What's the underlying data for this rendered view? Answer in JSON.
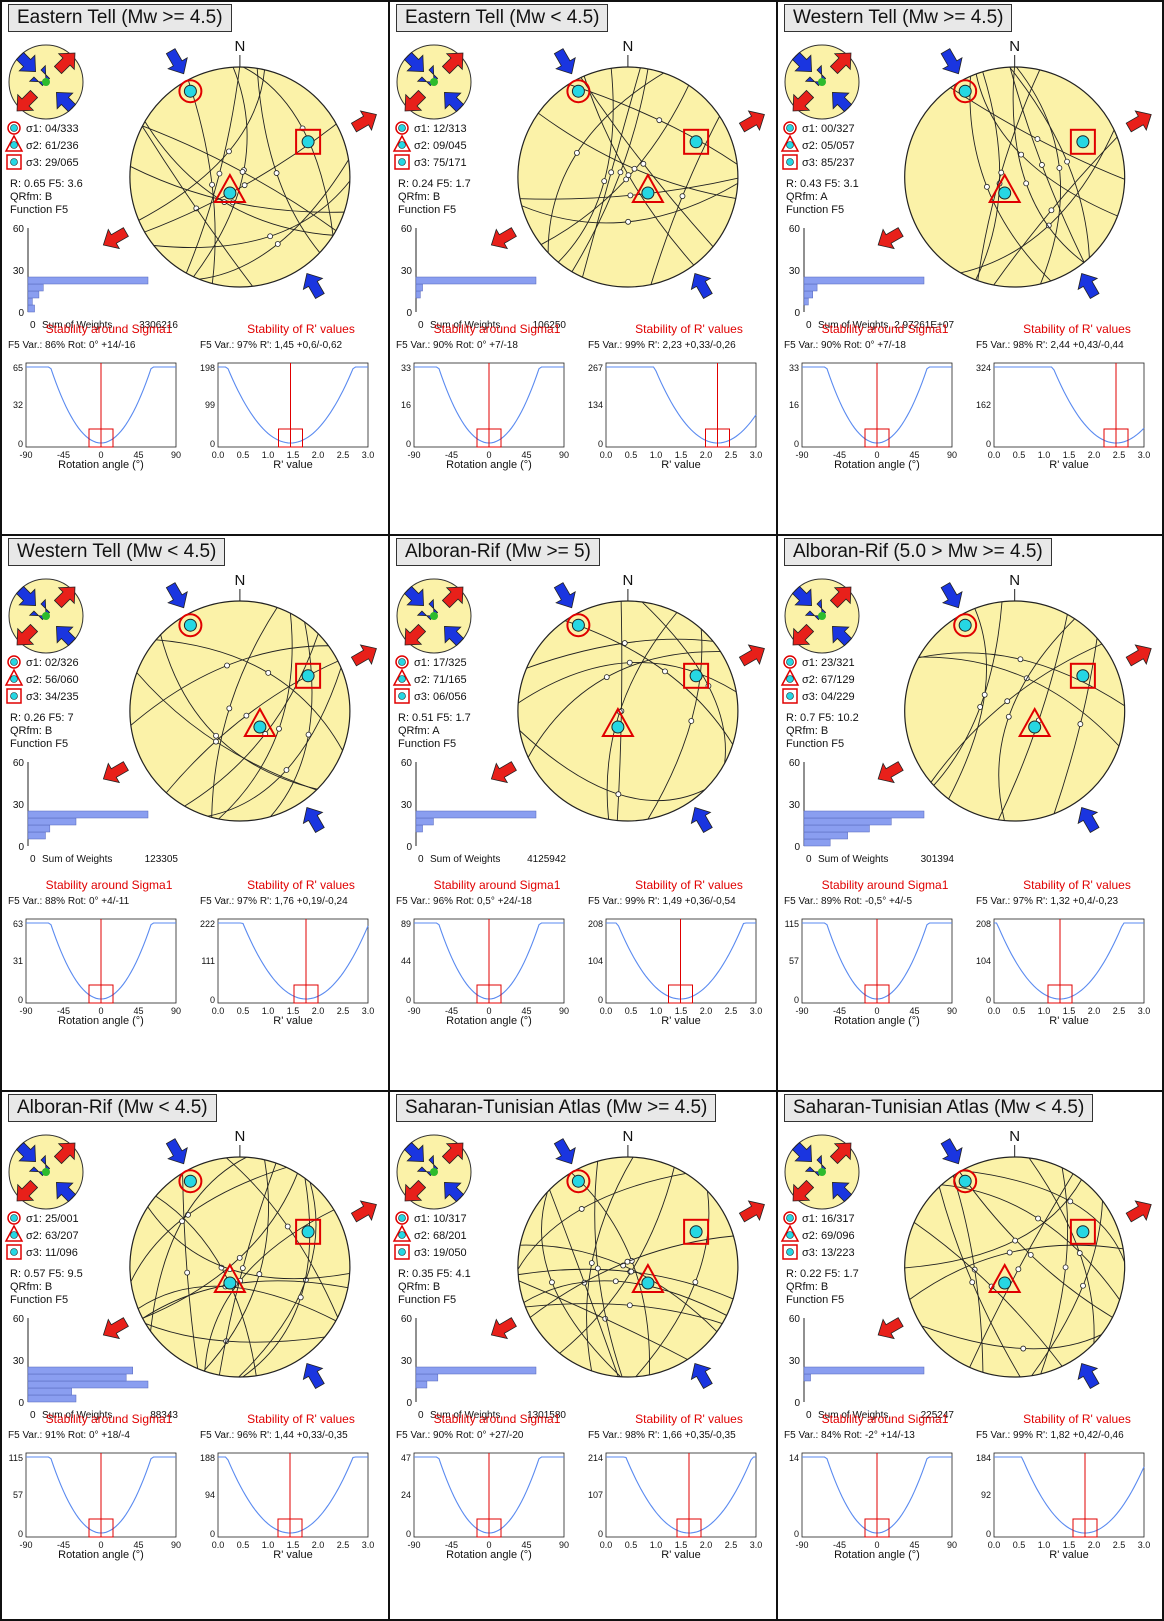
{
  "north_label": "N",
  "histogram": {
    "sum_label": "Sum of Weights",
    "yticks": [
      "60",
      "30",
      "0"
    ],
    "xzero": "0",
    "function_label": "Function F5"
  },
  "stability": {
    "sigma_title": "Stability around Sigma1",
    "r_title": "Stability of R' values",
    "rot_xticks": [
      "-90",
      "-45",
      "0",
      "45",
      "90"
    ],
    "r_xticks": [
      "0.0",
      "0.5",
      "1.0",
      "1.5",
      "2.0",
      "2.5",
      "3.0"
    ],
    "rot_axis": "Rotation angle (°)",
    "r_axis": "R' value",
    "f5": "F5"
  },
  "colors": {
    "circle": "#fbf2a8",
    "arrow_comp": "#1a35e0",
    "arrow_ext": "#e8201a",
    "marker": "#e00000",
    "fill": "#26d7e3",
    "hist": "#8a9ef0",
    "curve": "#5a8af0"
  },
  "panels": [
    {
      "title": "Eastern Tell (Mw >= 4.5)",
      "s1": "04/333",
      "s2": "61/236",
      "s3": "29/065",
      "r_f5": "R: 0.65   F5: 3.6",
      "qrfm": "QRfm: B",
      "sum": "3306216",
      "var1": "Var.: 86%",
      "rot1": "Rot: 0° +14/-16",
      "var2": "Var.: 97%",
      "rot2": "R': 1,45 +0,6/-0,62",
      "ymax1": "65",
      "ymid1": "32",
      "ymax2": "198",
      "ymid2": "99",
      "r_val": 1.45,
      "hist": [
        3,
        2,
        5,
        7,
        55
      ]
    },
    {
      "title": "Eastern Tell (Mw < 4.5)",
      "s1": "12/313",
      "s2": "09/045",
      "s3": "75/171",
      "r_f5": "R: 0.24   F5: 1.7",
      "qrfm": "QRfm: B",
      "sum": "106250",
      "var1": "Var.: 90%",
      "rot1": "Rot: 0° +7/-18",
      "var2": "Var.: 99%",
      "rot2": "R': 2,23 +0,33/-0,26",
      "ymax1": "33",
      "ymid1": "16",
      "ymax2": "267",
      "ymid2": "134",
      "r_val": 2.23,
      "hist": [
        0,
        0,
        2,
        3,
        55
      ]
    },
    {
      "title": "Western Tell (Mw >= 4.5)",
      "s1": "00/327",
      "s2": "05/057",
      "s3": "85/237",
      "r_f5": "R: 0.43   F5: 3.1",
      "qrfm": "QRfm: A",
      "sum": "2.97261E+07",
      "var1": "Var.: 90%",
      "rot1": "Rot: 0° +7/-18",
      "var2": "Var.: 98%",
      "rot2": "R': 2,44 +0,43/-0,44",
      "ymax1": "33",
      "ymid1": "16",
      "ymax2": "324",
      "ymid2": "162",
      "r_val": 2.44,
      "hist": [
        0,
        2,
        4,
        6,
        55
      ]
    },
    {
      "title": "Western Tell (Mw < 4.5)",
      "s1": "02/326",
      "s2": "56/060",
      "s3": "34/235",
      "r_f5": "R: 0.26   F5: 7",
      "qrfm": "QRfm: B",
      "sum": "123305",
      "var1": "Var.: 88%",
      "rot1": "Rot: 0° +4/-11",
      "var2": "Var.: 97%",
      "rot2": "R': 1,76 +0,19/-0,24",
      "ymax1": "63",
      "ymid1": "31",
      "ymax2": "222",
      "ymid2": "111",
      "r_val": 1.76,
      "hist": [
        0,
        8,
        10,
        22,
        55
      ]
    },
    {
      "title": "Alboran-Rif (Mw >= 5)",
      "s1": "17/325",
      "s2": "71/165",
      "s3": "06/056",
      "r_f5": "R: 0.51   F5: 1.7",
      "qrfm": "QRfm: A",
      "sum": "4125942",
      "var1": "Var.: 96%",
      "rot1": "Rot: 0,5° +24/-18",
      "var2": "Var.: 99%",
      "rot2": "R': 1,49 +0,36/-0,54",
      "ymax1": "89",
      "ymid1": "44",
      "ymax2": "208",
      "ymid2": "104",
      "r_val": 1.49,
      "hist": [
        0,
        0,
        3,
        8,
        55
      ]
    },
    {
      "title": "Alboran-Rif (5.0 > Mw >= 4.5)",
      "s1": "23/321",
      "s2": "67/129",
      "s3": "04/229",
      "r_f5": "R: 0.7   F5: 10.2",
      "qrfm": "QRfm: B",
      "sum": "301394",
      "var1": "Var.: 89%",
      "rot1": "Rot: -0,5° +4/-5",
      "var2": "Var.: 97%",
      "rot2": "R': 1,32 +0,4/-0,23",
      "ymax1": "115",
      "ymid1": "57",
      "ymax2": "208",
      "ymid2": "104",
      "r_val": 1.32,
      "hist": [
        12,
        20,
        30,
        40,
        55
      ]
    },
    {
      "title": "Alboran-Rif (Mw < 4.5)",
      "s1": "25/001",
      "s2": "63/207",
      "s3": "11/096",
      "r_f5": "R: 0.57   F5: 9.5",
      "qrfm": "QRfm: B",
      "sum": "88343",
      "var1": "Var.: 91%",
      "rot1": "Rot: 0° +18/-4",
      "var2": "Var.: 96%",
      "rot2": "R': 1,44 +0,33/-0,35",
      "ymax1": "115",
      "ymid1": "57",
      "ymax2": "188",
      "ymid2": "94",
      "r_val": 1.44,
      "hist": [
        22,
        20,
        55,
        45,
        48
      ]
    },
    {
      "title": "Saharan-Tunisian Atlas (Mw >= 4.5)",
      "s1": "10/317",
      "s2": "68/201",
      "s3": "19/050",
      "r_f5": "R: 0.35   F5: 4.1",
      "qrfm": "QRfm: B",
      "sum": "1301580",
      "var1": "Var.: 90%",
      "rot1": "Rot: 0° +27/-20",
      "var2": "Var.: 98%",
      "rot2": "R': 1,66 +0,35/-0,35",
      "ymax1": "47",
      "ymid1": "24",
      "ymax2": "214",
      "ymid2": "107",
      "r_val": 1.66,
      "hist": [
        0,
        0,
        5,
        10,
        55
      ]
    },
    {
      "title": "Saharan-Tunisian Atlas (Mw < 4.5)",
      "s1": "16/317",
      "s2": "69/096",
      "s3": "13/223",
      "r_f5": "R: 0.22   F5: 1.7",
      "qrfm": "QRfm: B",
      "sum": "225247",
      "var1": "Var.: 84%",
      "rot1": "Rot: -2° +14/-13",
      "var2": "Var.: 99%",
      "rot2": "R': 1,82 +0,42/-0,46",
      "ymax1": "14",
      "ymid1": "",
      "ymax2": "184",
      "ymid2": "92",
      "r_val": 1.82,
      "hist": [
        0,
        0,
        0,
        3,
        55
      ]
    }
  ]
}
